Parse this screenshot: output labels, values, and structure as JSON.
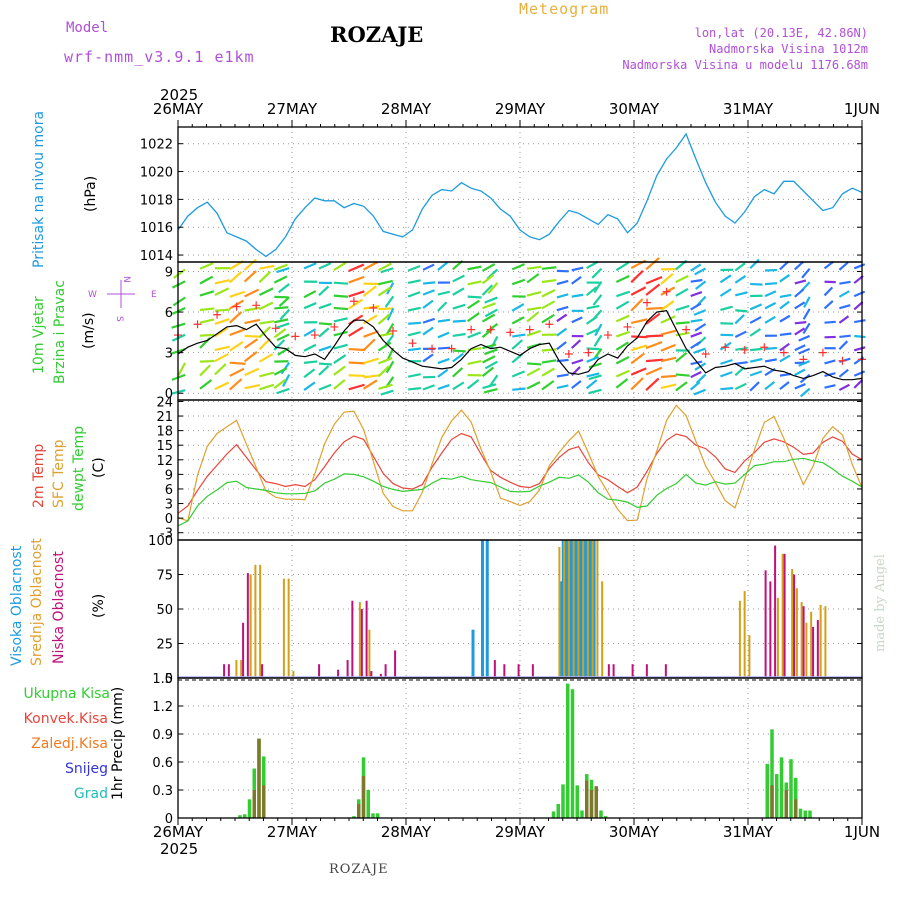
{
  "header": {
    "model_label": "Model",
    "model_name": "wrf-nmm_v3.9.1 e1km",
    "station": "ROZAJE",
    "title": "Meteogram",
    "lonlat": "lon,lat (20.13E, 42.86N)",
    "elevation": "Nadmorska Visina 1012m",
    "model_elevation": "Nadmorska Visina u modelu 1176.68m",
    "year_top": "2025",
    "year_bottom": "2025",
    "footer_station": "ROZAJE",
    "credit": "made by Angel"
  },
  "colors": {
    "pressure": "#1e9be0",
    "wind_label": "#33cc33",
    "temp2m": "#e8453c",
    "sfc": "#e0a030",
    "dewpt": "#33cc33",
    "cloud_high": "#1e9be0",
    "cloud_mid": "#d4a017",
    "cloud_low": "#c0107a",
    "precip_total": "#33cc33",
    "precip_conv": "#e8453c",
    "precip_frz": "#f07a20",
    "snow": "#3333dd",
    "graupel": "#22bbbb",
    "header_purple": "#b050d8",
    "header_orange": "#e8b040"
  },
  "x_axis": {
    "date_labels": [
      "26MAY",
      "27MAY",
      "28MAY",
      "29MAY",
      "30MAY",
      "31MAY",
      "1JUN"
    ],
    "hours_total": 144
  },
  "chart_data": [
    {
      "type": "line",
      "id": "pressure",
      "ylabel": "Pritisak na nivou mora",
      "unit": "(hPa)",
      "ylim": [
        1013.5,
        1023.2
      ],
      "yticks": [
        1014,
        1016,
        1018,
        1020,
        1022
      ],
      "series": [
        {
          "values": [
            1015.8,
            1016.8,
            1017.4,
            1017.8,
            1017.0,
            1015.6,
            1015.3,
            1015.0,
            1014.4,
            1013.9,
            1014.4,
            1015.3,
            1016.6,
            1017.4,
            1018.1,
            1017.9,
            1017.9,
            1017.4,
            1017.7,
            1017.5,
            1016.8,
            1015.7,
            1015.5,
            1015.3,
            1015.8,
            1017.3,
            1018.3,
            1018.7,
            1018.6,
            1019.2,
            1018.8,
            1018.6,
            1018.1,
            1017.3,
            1016.8,
            1015.8,
            1015.3,
            1015.1,
            1015.5,
            1016.4,
            1017.2,
            1017.0,
            1016.6,
            1016.2,
            1016.9,
            1016.6,
            1015.6,
            1016.3,
            1017.9,
            1019.7,
            1020.9,
            1021.7,
            1022.7,
            1020.9,
            1019.2,
            1017.8,
            1016.8,
            1016.3,
            1017.1,
            1018.2,
            1018.7,
            1018.4,
            1019.3,
            1019.3,
            1018.6,
            1017.9,
            1017.2,
            1017.4,
            1018.4,
            1018.8,
            1018.5
          ]
        }
      ]
    },
    {
      "type": "line",
      "id": "wind",
      "ylabel": "10m Vjetar",
      "ylabel2": "Brzina i Pravac",
      "unit": "(m/s)",
      "ylim": [
        -0.5,
        9.7
      ],
      "yticks": [
        0,
        3,
        6,
        9
      ],
      "compass": [
        "N",
        "S",
        "W",
        "E"
      ],
      "series": [
        {
          "name": "speed",
          "values": [
            2.9,
            3.4,
            3.7,
            3.9,
            4.4,
            4.9,
            5.0,
            4.7,
            5.1,
            4.2,
            3.4,
            3.3,
            2.8,
            2.7,
            2.9,
            2.5,
            3.5,
            4.6,
            5.4,
            5.4,
            4.9,
            3.9,
            3.2,
            2.6,
            2.3,
            2.0,
            1.9,
            1.8,
            1.9,
            2.5,
            3.3,
            3.6,
            3.3,
            3.4,
            3.1,
            2.8,
            3.3,
            3.6,
            3.7,
            2.4,
            1.5,
            1.4,
            1.6,
            2.5,
            2.9,
            2.6,
            3.5,
            4.1,
            5.3,
            6.0,
            6.1,
            4.7,
            3.3,
            2.4,
            1.5,
            1.9,
            2.0,
            2.2,
            1.8,
            1.9,
            2.0,
            1.7,
            1.6,
            1.3,
            1.1,
            1.3,
            1.6,
            1.2,
            1.0,
            1.0,
            1.1
          ]
        }
      ]
    },
    {
      "type": "line",
      "id": "temperature",
      "ylabel": "2m Temp",
      "ylabel2": "SFC Temp",
      "ylabel3": "dewpt Temp",
      "unit": "(C)",
      "ylim": [
        -4.5,
        24.3
      ],
      "yticks": [
        -3,
        0,
        3,
        6,
        9,
        12,
        15,
        18,
        21,
        24
      ],
      "series": [
        {
          "name": "2m Temp",
          "values": [
            1.0,
            2.5,
            5.7,
            8.6,
            10.9,
            13.2,
            15.1,
            12.5,
            9.9,
            7.5,
            7.1,
            6.5,
            6.9,
            6.5,
            7.9,
            10.6,
            13.4,
            15.7,
            16.9,
            16.2,
            12.7,
            9.2,
            7.1,
            6.2,
            6.0,
            6.9,
            10.5,
            13.4,
            16.2,
            17.4,
            16.7,
            13.2,
            9.8,
            8.4,
            7.4,
            6.5,
            6.3,
            7.1,
            10.2,
            12.5,
            14.1,
            14.7,
            11.4,
            8.9,
            7.9,
            6.5,
            5.2,
            6.4,
            9.6,
            13.3,
            16.0,
            17.3,
            16.8,
            15.0,
            14.3,
            12.6,
            10.1,
            9.4,
            11.8,
            13.5,
            15.6,
            16.3,
            15.7,
            14.6,
            13.1,
            13.4,
            15.6,
            16.7,
            15.8,
            13.2,
            12.0
          ]
        },
        {
          "name": "SFC Temp",
          "values": [
            0.1,
            -0.6,
            8.8,
            14.8,
            17.4,
            18.8,
            20.1,
            15.2,
            10.4,
            5.6,
            4.3,
            3.9,
            3.9,
            3.8,
            9.1,
            15.3,
            19.3,
            21.8,
            22.0,
            18.2,
            11.6,
            5.1,
            2.4,
            1.5,
            1.5,
            5.3,
            11.2,
            16.6,
            20.0,
            22.2,
            19.8,
            14.3,
            9.5,
            4.1,
            3.4,
            2.6,
            3.4,
            5.8,
            10.8,
            13.5,
            15.9,
            17.9,
            13.4,
            8.6,
            5.3,
            1.8,
            -0.5,
            -0.4,
            8.1,
            13.8,
            20.1,
            23.2,
            21.1,
            15.8,
            10.7,
            7.3,
            3.6,
            2.1,
            8.0,
            14.1,
            19.7,
            20.9,
            16.4,
            11.6,
            6.9,
            10.7,
            16.4,
            18.8,
            17.1,
            11.1,
            6.3
          ]
        },
        {
          "name": "dewpt Temp",
          "values": [
            -1.6,
            -0.6,
            2.5,
            4.5,
            5.8,
            7.3,
            7.6,
            6.3,
            6.0,
            5.7,
            5.2,
            5.0,
            5.0,
            5.1,
            5.6,
            7.2,
            8.0,
            9.1,
            9.0,
            8.5,
            7.6,
            6.5,
            5.9,
            5.5,
            5.7,
            5.9,
            7.2,
            8.2,
            8.0,
            8.6,
            7.9,
            7.6,
            7.3,
            6.4,
            5.5,
            5.4,
            5.5,
            6.6,
            7.4,
            8.4,
            8.2,
            8.9,
            7.4,
            5.2,
            3.9,
            3.7,
            3.3,
            2.2,
            2.5,
            4.7,
            6.1,
            7.1,
            9.0,
            7.2,
            6.8,
            7.5,
            7.0,
            7.2,
            9.0,
            10.8,
            11.1,
            11.6,
            11.6,
            12.1,
            12.3,
            11.8,
            11.4,
            10.1,
            8.6,
            7.6,
            6.4
          ]
        }
      ]
    },
    {
      "type": "bar",
      "id": "clouds",
      "ylabel": "Visoka Oblacnost",
      "ylabel2": "Srednja Oblacnost",
      "ylabel3": "Niska Oblacnost",
      "unit": "(%)",
      "ylim": [
        0,
        100
      ],
      "yticks": [
        0,
        25,
        50,
        75,
        100
      ],
      "series": [
        {
          "name": "Visoka",
          "x": [
            62,
            64,
            65,
            80.5,
            81,
            81.5,
            82,
            82.5,
            83,
            83.5,
            84,
            84.5,
            85,
            85.5,
            86,
            86.5,
            87,
            87.5
          ],
          "values": [
            35,
            100,
            100,
            70,
            100,
            100,
            100,
            100,
            100,
            100,
            100,
            100,
            100,
            100,
            100,
            100,
            100,
            100
          ]
        },
        {
          "name": "Srednja",
          "x": [
            12,
            13,
            15,
            16,
            17,
            22,
            23,
            24,
            38,
            40,
            80,
            81,
            82,
            83,
            84,
            85,
            86,
            87,
            88,
            89,
            118,
            119,
            120,
            126,
            127,
            129,
            130,
            131,
            132,
            133,
            135,
            136
          ],
          "values": [
            13,
            13,
            75,
            82,
            82,
            72,
            72,
            5,
            55,
            35,
            95,
            100,
            100,
            100,
            100,
            100,
            100,
            100,
            100,
            70,
            56,
            63,
            31,
            58,
            90,
            79,
            65,
            55,
            40,
            48,
            53,
            52
          ]
        },
        {
          "name": "Niska",
          "x": [
            10,
            11,
            14,
            15,
            18,
            30,
            34,
            36,
            37,
            39,
            40,
            41,
            43,
            44,
            46,
            67,
            69,
            72,
            75,
            91,
            92,
            96,
            99,
            103,
            124,
            125,
            126,
            128,
            130,
            132,
            134,
            135
          ],
          "values": [
            10,
            10,
            40,
            76,
            10,
            10,
            6,
            13,
            56,
            50,
            56,
            5,
            3,
            10,
            20,
            13,
            10,
            10,
            10,
            10,
            10,
            10,
            10,
            10,
            78,
            70,
            96,
            90,
            75,
            52,
            37,
            42
          ]
        }
      ]
    },
    {
      "type": "bar",
      "id": "precip",
      "ylabel": "1hr Precip",
      "unit": "(mm)",
      "legend": [
        "Ukupna Kisa",
        "Konvek.Kisa",
        "Zaledj.Kisa",
        "Snijeg",
        "Grad"
      ],
      "ylim": [
        0,
        1.5
      ],
      "yticks": [
        0,
        0.3,
        0.6,
        0.9,
        1.2,
        1.5
      ],
      "series": [
        {
          "name": "Ukupna Kisa",
          "x": [
            13,
            14,
            15,
            16,
            17,
            18,
            37,
            38,
            39,
            40,
            41,
            42,
            79,
            80,
            81,
            82,
            83,
            84,
            85,
            86,
            87,
            88,
            89,
            90,
            124,
            125,
            126,
            127,
            128,
            129,
            130,
            131,
            132,
            133
          ],
          "values": [
            0.03,
            0.04,
            0.2,
            0.53,
            0.85,
            0.66,
            0.02,
            0.2,
            0.65,
            0.3,
            0.05,
            0.05,
            0.07,
            0.15,
            0.36,
            1.44,
            1.38,
            0.35,
            0.08,
            0.47,
            0.41,
            0.34,
            0.08,
            0.02,
            0.58,
            0.95,
            0.47,
            0.65,
            0.38,
            0.63,
            0.43,
            0.1,
            0.08,
            0.08
          ]
        },
        {
          "name": "Konvek.Kisa",
          "x": [
            16,
            17,
            18,
            38,
            39,
            86,
            87,
            88,
            125,
            128,
            130
          ],
          "values": [
            0.3,
            0.85,
            0.35,
            0.15,
            0.45,
            0.4,
            0.3,
            0.34,
            0.35,
            0.3,
            0.2
          ]
        },
        {
          "name": "Zaledj.Kisa",
          "x": [],
          "values": []
        },
        {
          "name": "Snijeg",
          "x": [],
          "values": []
        },
        {
          "name": "Grad",
          "x": [],
          "values": []
        }
      ]
    }
  ]
}
